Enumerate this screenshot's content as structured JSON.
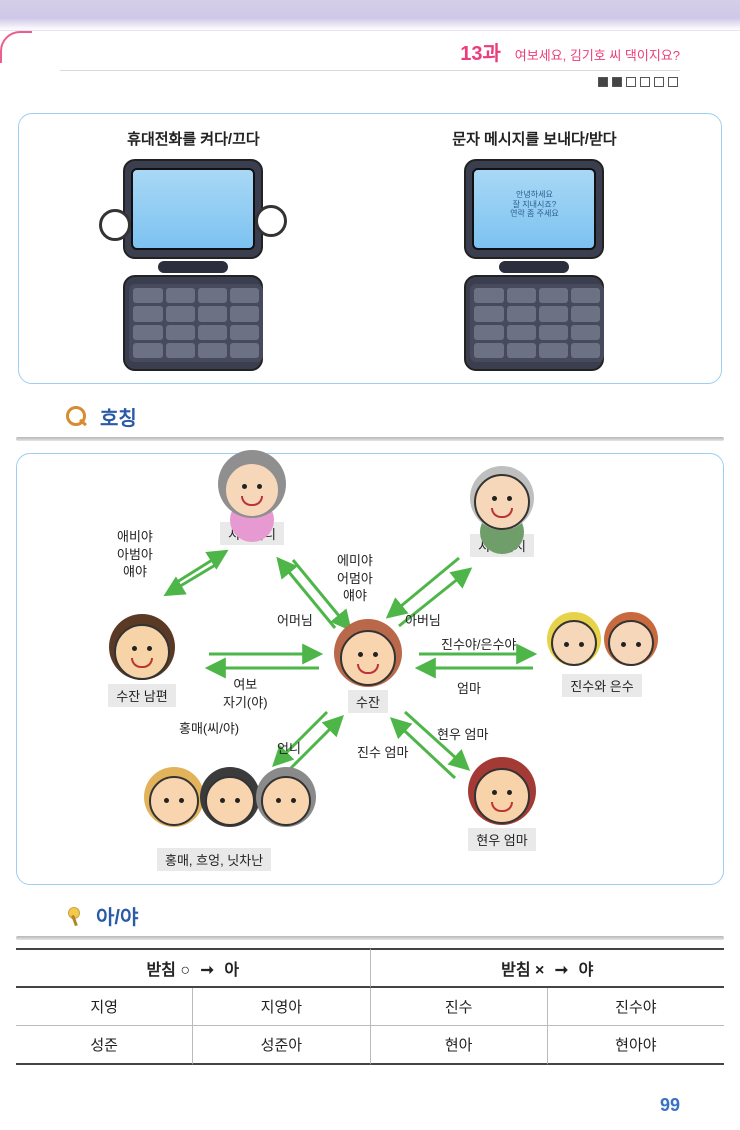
{
  "header": {
    "lesson": "13과",
    "subtitle": "여보세요, 김기호 씨 댁이지요?"
  },
  "pagination": {
    "count": 6,
    "filled": [
      0,
      1
    ]
  },
  "phone_section": {
    "left_caption": "휴대전화를 켜다/끄다",
    "right_caption": "문자 메시지를 보내다/받다",
    "msg_text": "안녕하세요\n잘 지내시죠?\n연락 좀 주세요"
  },
  "section_titles": {
    "relations": "호칭",
    "grammar": "아/야"
  },
  "people": {
    "mother_in_law": {
      "label": "시어머니",
      "skin": "#f7d7b9",
      "hair": "#8f8f8f",
      "extra": "#e69ad1"
    },
    "father_in_law": {
      "label": "시아버지",
      "skin": "#f7d7b9",
      "hair": "#bfbfbf",
      "extra": "#6f9e6a"
    },
    "husband": {
      "label": "수잔 남편",
      "skin": "#f7d4a8",
      "hair": "#5a3a24"
    },
    "center": {
      "label": "수잔",
      "skin": "#f8d4af",
      "hair": "#b9694a"
    },
    "kids": {
      "label": "진수와 은수",
      "skin": "#f7d7b9",
      "hair": "#6b4a2a",
      "extra": "#e7d24a"
    },
    "friend_mom": {
      "label": "현우 엄마",
      "skin": "#f8d2a9",
      "hair": "#a43a35"
    },
    "friends": {
      "label": "홍매, 흐엉, 닛차난",
      "colors": [
        "#e2b35a",
        "#3b3b3b",
        "#8a8a8a"
      ]
    }
  },
  "rel": {
    "to_mother_in_law": "애비야\n아범아\n얘야",
    "to_center_from_mil": "에미야\n어멈아\n얘야",
    "center_to_mil": "어머님",
    "center_to_fil": "아버님",
    "husband_wife": "여보\n자기(야)",
    "center_to_friends": "홍매(씨/야)",
    "friends_to_center": "언니",
    "center_to_friend_mom": "진수 엄마",
    "friend_mom_to_center": "현우 엄마",
    "kids_to_center": "엄마",
    "center_to_kids": "진수야/은수야"
  },
  "grammar": {
    "head_left": "받침 ○",
    "head_left_res": "아",
    "head_right": "받침 ×",
    "head_right_res": "야",
    "arrow": "➞",
    "rows": [
      {
        "l1": "지영",
        "l2": "지영아",
        "r1": "진수",
        "r2": "진수야"
      },
      {
        "l1": "성준",
        "l2": "성준아",
        "r1": "현아",
        "r2": "현아야"
      }
    ]
  },
  "page_number": "99"
}
